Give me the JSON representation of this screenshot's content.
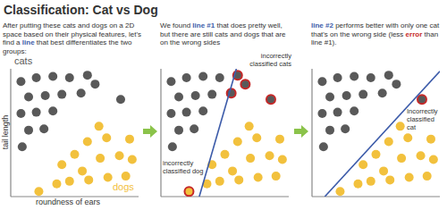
{
  "title": "Classification: Cat vs Dog",
  "chart_data": [
    {
      "type": "scatter",
      "subtitle": "After putting these cats and dogs on a 2D space based on their physical features, let's find a line that best differentiates the two groups:",
      "highlights": [
        {
          "text": "line",
          "color": "#3c5ba9"
        }
      ],
      "x_label": "roundness of ears",
      "y_label": "tail length",
      "xlim": [
        0,
        10
      ],
      "ylim": [
        0,
        10
      ],
      "tick_labels": false,
      "annotations": [],
      "series": [
        {
          "name": "cats",
          "color": "#595959",
          "x": [
            0.8,
            2.0,
            3.3,
            4.6,
            6.0,
            1.4,
            2.7,
            4.0,
            5.5,
            6.6,
            0.8,
            2.0,
            3.3,
            1.4,
            2.6,
            0.9,
            8.6
          ],
          "values": [
            9.0,
            9.3,
            9.4,
            9.3,
            9.5,
            7.8,
            7.9,
            8.0,
            8.1,
            8.8,
            6.5,
            6.6,
            6.7,
            5.2,
            5.3,
            3.9,
            7.6
          ]
        },
        {
          "name": "dogs",
          "color": "#f2c13d",
          "x": [
            6.9,
            7.5,
            6.0,
            5.0,
            4.0,
            7.0,
            8.5,
            9.3,
            3.6,
            4.6,
            6.1,
            7.6,
            9.0,
            2.2,
            9.5,
            5.6
          ],
          "values": [
            5.5,
            4.6,
            4.3,
            3.3,
            2.5,
            3.0,
            3.2,
            4.5,
            1.0,
            1.2,
            1.3,
            1.5,
            1.6,
            0.4,
            2.9,
            2.0
          ]
        }
      ]
    },
    {
      "type": "scatter",
      "subtitle": "We found line #1 that does pretty well, but there are still cats and dogs that are on the wrong sides",
      "highlights": [
        {
          "text": "line #1",
          "color": "#3c5ba9"
        }
      ],
      "xlim": [
        0,
        10
      ],
      "ylim": [
        0,
        10
      ],
      "tick_labels": false,
      "annotations": [
        "incorrectly classified cats",
        "incorrectly classified dog"
      ],
      "series": [
        {
          "color": "#595959",
          "x": [
            0.8,
            2.0,
            3.3,
            4.6,
            6.0,
            1.4,
            2.7,
            4.0,
            5.5,
            6.6,
            0.8,
            2.0,
            3.3,
            1.4,
            2.6,
            0.9,
            8.6
          ],
          "values": [
            9.0,
            9.3,
            9.4,
            9.3,
            9.5,
            7.8,
            7.9,
            8.0,
            8.1,
            8.8,
            6.5,
            6.6,
            6.7,
            5.2,
            5.3,
            3.9,
            7.6
          ]
        },
        {
          "color": "#f2c13d",
          "x": [
            6.9,
            7.5,
            6.0,
            5.0,
            4.0,
            7.0,
            8.5,
            9.3,
            3.6,
            4.6,
            6.1,
            7.6,
            9.0,
            2.2,
            9.5,
            5.6
          ],
          "values": [
            5.5,
            4.6,
            4.3,
            3.3,
            2.5,
            3.0,
            3.2,
            4.5,
            1.0,
            1.2,
            1.3,
            1.5,
            1.6,
            0.4,
            2.9,
            2.0
          ]
        },
        {
          "type": "line",
          "color": "#3c5ba9",
          "x": [
            3.0,
            5.9
          ],
          "values": [
            0,
            10
          ]
        }
      ]
    },
    {
      "type": "scatter",
      "subtitle": "line #2 performs better with only one cat that's on the wrong side (less error than line #1).",
      "highlights": [
        {
          "text": "line #2",
          "color": "#3c5ba9"
        },
        {
          "text": "error",
          "color": "#c62828"
        }
      ],
      "xlim": [
        0,
        10
      ],
      "ylim": [
        0,
        10
      ],
      "tick_labels": false,
      "annotations": [
        "Incorrectly classified cat"
      ],
      "series": [
        {
          "color": "#595959",
          "x": [
            0.8,
            2.0,
            3.3,
            4.6,
            6.0,
            1.4,
            2.7,
            4.0,
            5.5,
            6.6,
            0.8,
            2.0,
            3.3,
            1.4,
            2.6,
            0.9,
            8.6
          ],
          "values": [
            9.0,
            9.3,
            9.4,
            9.3,
            9.5,
            7.8,
            7.9,
            8.0,
            8.1,
            8.8,
            6.5,
            6.6,
            6.7,
            5.2,
            5.3,
            3.9,
            7.6
          ]
        },
        {
          "color": "#f2c13d",
          "x": [
            6.9,
            7.5,
            6.0,
            5.0,
            4.0,
            7.0,
            8.5,
            9.3,
            3.6,
            4.6,
            6.1,
            7.6,
            9.0,
            2.2,
            9.5,
            5.6
          ],
          "values": [
            5.5,
            4.6,
            4.3,
            3.3,
            2.5,
            3.0,
            3.2,
            4.5,
            1.0,
            1.2,
            1.3,
            1.5,
            1.6,
            0.4,
            2.9,
            2.0
          ]
        },
        {
          "type": "line",
          "color": "#3c5ba9",
          "x": [
            1.0,
            10.0
          ],
          "values": [
            0,
            9.8
          ]
        }
      ]
    }
  ]
}
